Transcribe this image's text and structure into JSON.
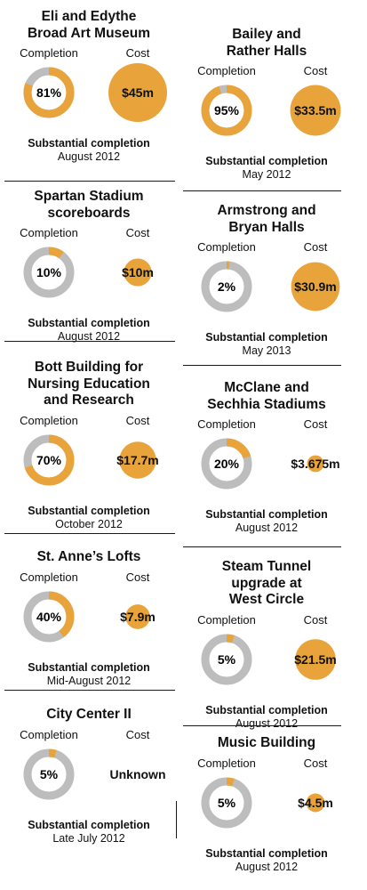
{
  "labels": {
    "completion": "Completion",
    "cost": "Cost",
    "substantial": "Substantial completion"
  },
  "colors": {
    "accent": "#E8A33A",
    "track": "#BDBDBD"
  },
  "chart_data": {
    "type": "pie",
    "projects": [
      {
        "title": "Eli and Edythe Broad Art Museum",
        "title_lines": [
          "Eli and Edythe",
          "Broad Art Museum"
        ],
        "completion": 81,
        "completion_label": "81%",
        "cost_millions": 45,
        "cost_label": "$45m",
        "completion_date": "August 2012"
      },
      {
        "title": "Spartan Stadium scoreboards",
        "title_lines": [
          "Spartan Stadium",
          "scoreboards"
        ],
        "completion": 10,
        "completion_label": "10%",
        "cost_millions": 10,
        "cost_label": "$10m",
        "completion_date": "August 2012"
      },
      {
        "title": "Bott Building for Nursing Education and Research",
        "title_lines": [
          "Bott Building for",
          "Nursing Education",
          "and Research"
        ],
        "completion": 70,
        "completion_label": "70%",
        "cost_millions": 17.7,
        "cost_label": "$17.7m",
        "completion_date": "October 2012"
      },
      {
        "title": "St. Anne’s Lofts",
        "title_lines": [
          "St. Anne’s Lofts"
        ],
        "completion": 40,
        "completion_label": "40%",
        "cost_millions": 7.9,
        "cost_label": "$7.9m",
        "completion_date": "Mid-August 2012"
      },
      {
        "title": "City Center II",
        "title_lines": [
          "City Center II"
        ],
        "completion": 5,
        "completion_label": "5%",
        "cost_millions": null,
        "cost_label": "Unknown",
        "completion_date": "Late July 2012"
      },
      {
        "title": "Bailey and Rather Halls",
        "title_lines": [
          "Bailey and",
          "Rather Halls"
        ],
        "completion": 95,
        "completion_label": "95%",
        "cost_millions": 33.5,
        "cost_label": "$33.5m",
        "completion_date": "May 2012"
      },
      {
        "title": "Armstrong and Bryan Halls",
        "title_lines": [
          "Armstrong and",
          "Bryan Halls"
        ],
        "completion": 2,
        "completion_label": "2%",
        "cost_millions": 30.9,
        "cost_label": "$30.9m",
        "completion_date": "May 2013"
      },
      {
        "title": "McClane and Sechhia Stadiums",
        "title_lines": [
          "McClane and",
          "Sechhia Stadiums"
        ],
        "completion": 20,
        "completion_label": "20%",
        "cost_millions": 3.675,
        "cost_label": "$3.675m",
        "completion_date": "August 2012"
      },
      {
        "title": "Steam Tunnel upgrade at West Circle",
        "title_lines": [
          "Steam Tunnel",
          "upgrade at",
          "West Circle"
        ],
        "completion": 5,
        "completion_label": "5%",
        "cost_millions": 21.5,
        "cost_label": "$21.5m",
        "completion_date": "August 2012"
      },
      {
        "title": "Music Building",
        "title_lines": [
          "Music Building"
        ],
        "completion": 5,
        "completion_label": "5%",
        "cost_millions": 4.5,
        "cost_label": "$4.5m",
        "completion_date": "August 2012"
      }
    ]
  }
}
